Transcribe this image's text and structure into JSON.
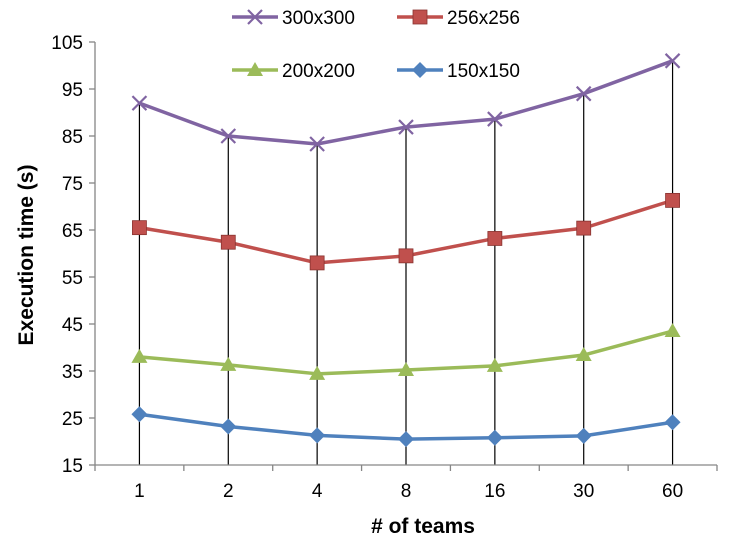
{
  "chart_data": {
    "type": "line",
    "title": "",
    "xlabel": "# of teams",
    "ylabel": "Execution time (s)",
    "categories": [
      "1",
      "2",
      "4",
      "8",
      "16",
      "30",
      "60"
    ],
    "ylim": [
      15,
      105
    ],
    "yticks": [
      15,
      25,
      35,
      45,
      55,
      65,
      75,
      85,
      95,
      105
    ],
    "grid": "vertical drop lines at each category",
    "legend_position": "top",
    "series": [
      {
        "name": "300x300",
        "color": "#8064A2",
        "marker": "x",
        "values": [
          92,
          85,
          83.3,
          86.9,
          88.6,
          94,
          101
        ]
      },
      {
        "name": "256x256",
        "color": "#C0504D",
        "marker": "square",
        "values": [
          65.5,
          62.4,
          58,
          59.5,
          63.2,
          65.4,
          71.3
        ]
      },
      {
        "name": "200x200",
        "color": "#9BBB59",
        "marker": "triangle",
        "values": [
          38,
          36.3,
          34.4,
          35.2,
          36.1,
          38.4,
          43.5
        ]
      },
      {
        "name": "150x150",
        "color": "#4F81BD",
        "marker": "diamond",
        "values": [
          25.8,
          23.2,
          21.3,
          20.5,
          20.8,
          21.2,
          24.1
        ]
      }
    ]
  }
}
